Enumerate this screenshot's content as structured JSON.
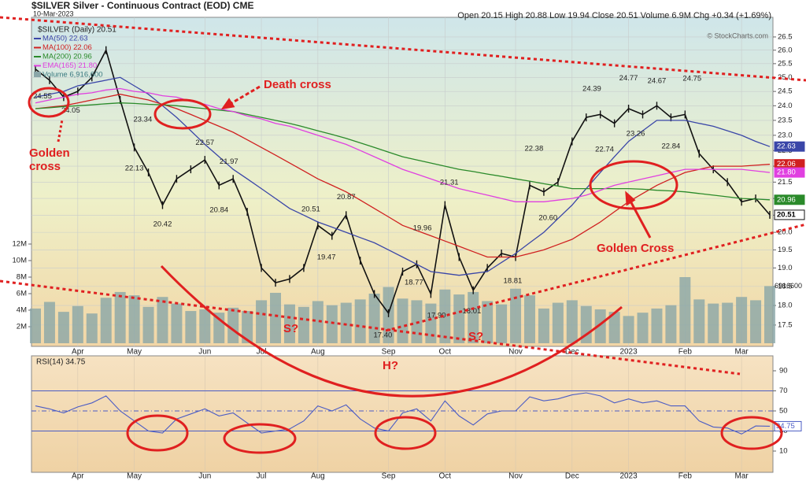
{
  "header": {
    "title": "$SILVER Silver - Continuous Contract (EOD) CME",
    "date": "10-Mar-2023",
    "stats": "Open 20.15 High 20.88 Low 19.94 Close 20.51 Volume 6.9M Chg +0.34 (+1.69%)",
    "credit": "© StockCharts.com"
  },
  "chart_data": [
    {
      "type": "line",
      "yscale": "log",
      "grid": true,
      "categories": [
        null,
        null,
        null,
        "Apr",
        null,
        null,
        null,
        "May",
        null,
        null,
        null,
        null,
        "Jun",
        null,
        null,
        null,
        "Jul",
        null,
        null,
        null,
        "Aug",
        null,
        null,
        null,
        null,
        "Sep",
        null,
        null,
        null,
        "Oct",
        null,
        null,
        null,
        null,
        "Nov",
        null,
        null,
        null,
        "Dec",
        null,
        null,
        null,
        "2023",
        null,
        null,
        null,
        "Feb",
        null,
        null,
        null,
        "Mar",
        null,
        null
      ],
      "ylim": [
        16.97,
        27.26
      ],
      "yticks": [
        17.5,
        {
          "value": 18,
          "label": "18.0"
        },
        18.5,
        {
          "value": 19,
          "label": "19.0"
        },
        19.5,
        {
          "value": 20,
          "label": "20.0"
        },
        20.5,
        {
          "value": 21,
          "label": "21.0"
        },
        21.5,
        {
          "value": 22,
          "label": "22.0"
        },
        22.5,
        {
          "value": 23,
          "label": "23.0"
        },
        23.5,
        {
          "value": 24,
          "label": "24.0"
        },
        24.5,
        {
          "value": 25,
          "label": "25.0"
        },
        25.5,
        {
          "value": 26,
          "label": "26.0"
        },
        26.5
      ],
      "series": [
        {
          "name": "$SILVER (Daily) 20.51",
          "color": "#111111",
          "end_label": "20.51",
          "values": [
            25.3,
            24.9,
            24.3,
            24.5,
            25.0,
            26.0,
            24.2,
            22.6,
            21.8,
            20.8,
            21.6,
            21.9,
            22.2,
            21.4,
            21.6,
            20.6,
            19.0,
            18.6,
            18.7,
            19.0,
            20.2,
            19.9,
            20.5,
            19.2,
            18.3,
            17.8,
            18.9,
            19.1,
            18.3,
            20.8,
            19.3,
            18.4,
            19.0,
            19.4,
            19.3,
            21.4,
            21.2,
            21.5,
            22.8,
            23.6,
            23.7,
            23.4,
            23.9,
            23.7,
            24.0,
            23.6,
            23.7,
            22.4,
            21.9,
            21.5,
            20.9,
            21.0,
            20.51
          ]
        },
        {
          "name": "MA(50) 22.63",
          "color": "#3a46a8",
          "end_label": "22.63",
          "values": [
            24.3,
            24.4,
            24.5,
            24.7,
            24.8,
            24.9,
            25.0,
            24.7,
            24.4,
            24.0,
            23.6,
            23.15,
            22.7,
            22.3,
            21.9,
            21.6,
            21.3,
            21.0,
            20.7,
            20.5,
            20.3,
            20.15,
            20.0,
            19.85,
            19.7,
            19.5,
            19.3,
            19.1,
            18.9,
            18.85,
            18.8,
            18.85,
            18.9,
            19.15,
            19.4,
            19.7,
            20.0,
            20.4,
            20.8,
            21.3,
            21.8,
            22.3,
            22.8,
            23.15,
            23.5,
            23.5,
            23.5,
            23.4,
            23.3,
            23.15,
            23.0,
            22.8,
            22.63
          ]
        },
        {
          "name": "MA(100) 22.06",
          "color": "#d02020",
          "end_label": "22.06",
          "values": [
            23.9,
            23.95,
            24.0,
            24.1,
            24.2,
            24.3,
            24.4,
            24.3,
            24.2,
            24.05,
            23.9,
            23.7,
            23.5,
            23.3,
            23.1,
            22.85,
            22.6,
            22.35,
            22.1,
            21.85,
            21.6,
            21.4,
            21.2,
            20.95,
            20.7,
            20.45,
            20.2,
            20.05,
            19.9,
            19.75,
            19.6,
            19.45,
            19.3,
            19.3,
            19.3,
            19.4,
            19.5,
            19.65,
            19.8,
            20.05,
            20.3,
            20.6,
            20.9,
            21.15,
            21.4,
            21.6,
            21.8,
            21.9,
            22.0,
            22.0,
            22.0,
            22.03,
            22.06
          ]
        },
        {
          "name": "MA(200) 20.96",
          "color": "#2a8a2a",
          "end_label": "20.96",
          "values": [
            23.9,
            23.93,
            23.97,
            24.0,
            24.03,
            24.07,
            24.1,
            24.08,
            24.05,
            24.03,
            24.0,
            23.95,
            23.9,
            23.85,
            23.8,
            23.7,
            23.6,
            23.5,
            23.4,
            23.28,
            23.15,
            23.03,
            22.9,
            22.75,
            22.6,
            22.45,
            22.3,
            22.2,
            22.1,
            22.0,
            21.9,
            21.83,
            21.75,
            21.68,
            21.6,
            21.53,
            21.45,
            21.38,
            21.3,
            21.3,
            21.3,
            21.3,
            21.3,
            21.28,
            21.25,
            21.23,
            21.2,
            21.15,
            21.1,
            21.05,
            21.0,
            20.98,
            20.96
          ]
        },
        {
          "name": "EMA(165) 21.80",
          "color": "#e040e0",
          "end_label": "21.80",
          "values": [
            24.1,
            24.2,
            24.3,
            24.4,
            24.45,
            24.55,
            24.6,
            24.5,
            24.45,
            24.35,
            24.3,
            24.15,
            24.05,
            23.9,
            23.8,
            23.65,
            23.55,
            23.4,
            23.3,
            23.15,
            23.0,
            22.85,
            22.7,
            22.5,
            22.3,
            22.1,
            21.9,
            21.75,
            21.6,
            21.45,
            21.3,
            21.2,
            21.1,
            21.0,
            20.9,
            20.9,
            20.9,
            20.95,
            21.0,
            21.1,
            21.25,
            21.4,
            21.5,
            21.6,
            21.7,
            21.8,
            21.9,
            21.9,
            21.9,
            21.9,
            21.9,
            21.85,
            21.8
          ]
        }
      ],
      "volume": {
        "name": "Volume 6,916,600",
        "color": "#8aa6a8",
        "end_label": "6916600",
        "ylim": [
          -380000,
          39430000
        ],
        "yticks": [
          {
            "value": 2000000,
            "label": "2M"
          },
          {
            "value": 4000000,
            "label": "4M"
          },
          {
            "value": 6000000,
            "label": "6M"
          },
          {
            "value": 8000000,
            "label": "8M"
          },
          {
            "value": 10000000,
            "label": "10M"
          },
          {
            "value": 12000000,
            "label": "12M"
          }
        ],
        "values": [
          4200000,
          5000000,
          3800000,
          4500000,
          3600000,
          5500000,
          6200000,
          5800000,
          4400000,
          5600000,
          4800000,
          3900000,
          4100000,
          3700000,
          4300000,
          3900000,
          5200000,
          6100000,
          4700000,
          4400000,
          5100000,
          4600000,
          4900000,
          5300000,
          6000000,
          6800000,
          5400000,
          5200000,
          4800000,
          6500000,
          5900000,
          6200000,
          5100000,
          4700000,
          6600000,
          5800000,
          4200000,
          4900000,
          5200000,
          4500000,
          4100000,
          3800000,
          3300000,
          3700000,
          4200000,
          4600000,
          8000000,
          5300000,
          4800000,
          4900000,
          5600000,
          5200000,
          6916600
        ]
      },
      "price_labels": [
        {
          "text": "24.55",
          "x": 0.5,
          "value": 24.55
        },
        {
          "text": "24.05",
          "x": 2.5,
          "value": 24.05
        },
        {
          "text": "23.34",
          "x": 7.6,
          "value": 23.34
        },
        {
          "text": "22.13",
          "x": 7,
          "value": 22.13
        },
        {
          "text": "20.42",
          "x": 9,
          "value": 20.42
        },
        {
          "text": "22.57",
          "x": 12,
          "value": 22.57
        },
        {
          "text": "21.97",
          "x": 13.7,
          "value": 21.97
        },
        {
          "text": "20.84",
          "x": 13,
          "value": 20.84
        },
        {
          "text": "20.51",
          "x": 19.5,
          "value": 20.51
        },
        {
          "text": "19.47",
          "x": 20.6,
          "value": 19.47
        },
        {
          "text": "20.87",
          "x": 22,
          "value": 20.87
        },
        {
          "text": "17.40",
          "x": 24.6,
          "value": 17.4
        },
        {
          "text": "18.77",
          "x": 26.8,
          "value": 18.77
        },
        {
          "text": "19.96",
          "x": 27.4,
          "value": 19.96
        },
        {
          "text": "17.90",
          "x": 28.4,
          "value": 17.9
        },
        {
          "text": "21.31",
          "x": 29.3,
          "value": 21.31
        },
        {
          "text": "18.01",
          "x": 30.9,
          "value": 18.01
        },
        {
          "text": "18.81",
          "x": 33.8,
          "value": 18.81
        },
        {
          "text": "22.38",
          "x": 35.3,
          "value": 22.38
        },
        {
          "text": "20.60",
          "x": 36.3,
          "value": 20.6
        },
        {
          "text": "24.39",
          "x": 39.4,
          "value": 24.39
        },
        {
          "text": "22.74",
          "x": 40.3,
          "value": 22.74
        },
        {
          "text": "24.77",
          "x": 42,
          "value": 24.77
        },
        {
          "text": "23.26",
          "x": 42.5,
          "value": 23.26
        },
        {
          "text": "24.67",
          "x": 44,
          "value": 24.67
        },
        {
          "text": "22.84",
          "x": 45,
          "value": 22.84
        },
        {
          "text": "24.75",
          "x": 46.5,
          "value": 24.75
        }
      ],
      "annotations": [
        "Death cross",
        "Golden cross",
        "Golden Cross",
        "S?",
        "S?",
        "H?"
      ]
    },
    {
      "type": "line",
      "title": "RSI(14) 34.75",
      "color": "#4b5cc4",
      "end_label": "34.75",
      "ylim": [
        -11.2,
        104.9
      ],
      "yticks": [
        10,
        30,
        50,
        70,
        90
      ],
      "levels": [
        30,
        70
      ],
      "midline": 50,
      "values": [
        55,
        52,
        48,
        54,
        58,
        65,
        50,
        40,
        30,
        28,
        42,
        47,
        52,
        45,
        48,
        38,
        28,
        30,
        32,
        40,
        55,
        50,
        56,
        42,
        33,
        30,
        48,
        52,
        40,
        60,
        45,
        36,
        47,
        50,
        50,
        64,
        60,
        62,
        66,
        68,
        65,
        58,
        62,
        58,
        60,
        55,
        55,
        40,
        34,
        33,
        27,
        35,
        34.75
      ]
    }
  ]
}
